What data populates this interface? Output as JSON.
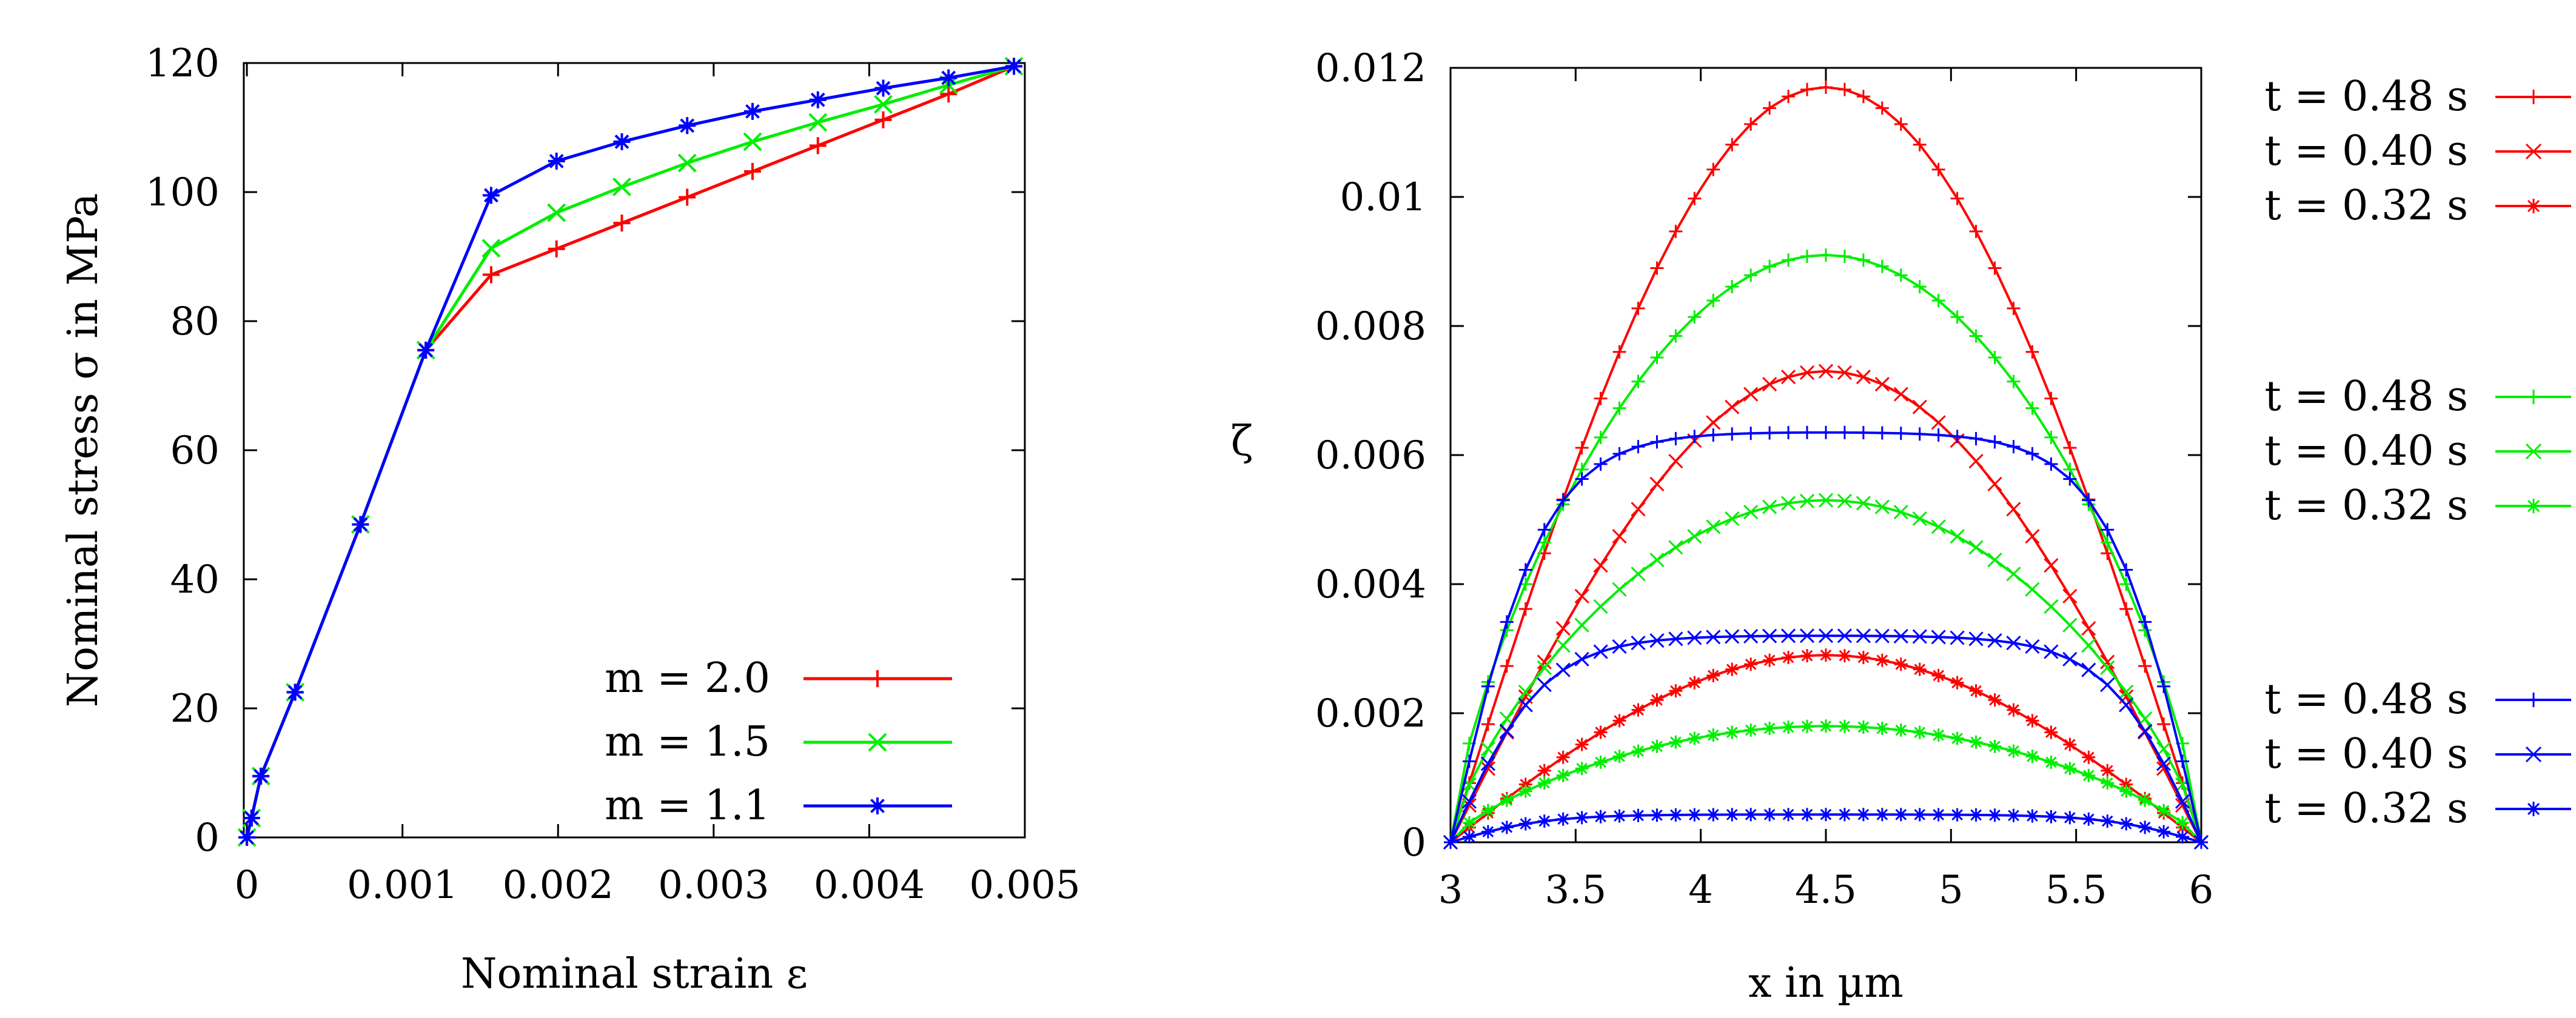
{
  "chart_data": [
    {
      "type": "line",
      "xlabel": "Nominal strain ε",
      "ylabel": "Nominal stress σ in MPa",
      "xlim": [
        -2e-05,
        0.005
      ],
      "ylim": [
        0,
        120
      ],
      "xticks": [
        0,
        0.001,
        0.002,
        0.003,
        0.004,
        0.005
      ],
      "xtick_labels": [
        "0",
        "0.001",
        "0.002",
        "0.003",
        "0.004",
        "0.005"
      ],
      "yticks": [
        0,
        20,
        40,
        60,
        80,
        100,
        120
      ],
      "ytick_labels": [
        "0",
        "20",
        "40",
        "60",
        "80",
        "100",
        "120"
      ],
      "legend_position": "bottom-right",
      "series": [
        {
          "name": "m = 2.0",
          "marker": "plus",
          "color": "#ff0000",
          "x": [
            0,
            3e-05,
            9e-05,
            0.00031,
            0.00073,
            0.00115,
            0.00157,
            0.00199,
            0.00241,
            0.00283,
            0.00325,
            0.00367,
            0.00409,
            0.00451,
            0.00493
          ],
          "y": [
            0,
            3,
            9.5,
            22.5,
            48.5,
            75.5,
            87.2,
            91.2,
            95.2,
            99.2,
            103.2,
            107.2,
            111.2,
            115.2,
            119.5
          ]
        },
        {
          "name": "m = 1.5",
          "marker": "x",
          "color": "#00ee00",
          "x": [
            0,
            3e-05,
            9e-05,
            0.00031,
            0.00073,
            0.00115,
            0.00157,
            0.00199,
            0.00241,
            0.00283,
            0.00325,
            0.00367,
            0.00409,
            0.00451,
            0.00493
          ],
          "y": [
            0,
            3,
            9.5,
            22.5,
            48.5,
            75.5,
            91.3,
            96.8,
            100.8,
            104.5,
            107.8,
            110.8,
            113.6,
            116.6,
            119.5
          ]
        },
        {
          "name": "m = 1.1",
          "marker": "star",
          "color": "#0000ff",
          "x": [
            0,
            3e-05,
            9e-05,
            0.00031,
            0.00073,
            0.00115,
            0.00157,
            0.00199,
            0.00241,
            0.00283,
            0.00325,
            0.00367,
            0.00409,
            0.00451,
            0.00493
          ],
          "y": [
            0,
            3,
            9.5,
            22.5,
            48.5,
            75.5,
            99.5,
            104.8,
            107.8,
            110.3,
            112.5,
            114.3,
            116.1,
            117.7,
            119.5
          ]
        }
      ]
    },
    {
      "type": "line",
      "xlabel": "x in µm",
      "ylabel": "ζ",
      "xlim": [
        3,
        6
      ],
      "ylim": [
        0,
        0.012
      ],
      "xticks": [
        3,
        3.5,
        4,
        4.5,
        5,
        5.5,
        6
      ],
      "xtick_labels": [
        "3",
        "3.5",
        "4",
        "4.5",
        "5",
        "5.5",
        "6"
      ],
      "yticks": [
        0,
        0.002,
        0.004,
        0.006,
        0.008,
        0.01,
        0.012
      ],
      "ytick_labels": [
        "0",
        "0.002",
        "0.004",
        "0.006",
        "0.008",
        "0.01",
        "0.012"
      ],
      "legend_position": "outside-right",
      "x_range": [
        3,
        6
      ],
      "points_per_series": 41,
      "series": [
        {
          "name": "t = 0.48 s",
          "group": "red",
          "marker": "plus",
          "color": "#ff0000",
          "peak": 0.0117,
          "shape": "sine"
        },
        {
          "name": "t = 0.40 s",
          "group": "red",
          "marker": "x",
          "color": "#ff0000",
          "peak": 0.0073,
          "shape": "sine"
        },
        {
          "name": "t = 0.32 s",
          "group": "red",
          "marker": "star",
          "color": "#ff0000",
          "peak": 0.0029,
          "shape": "sine"
        },
        {
          "name": "t = 0.48 s",
          "group": "green",
          "marker": "plus",
          "color": "#00ee00",
          "peak": 0.0091,
          "shape": "flat"
        },
        {
          "name": "t = 0.40 s",
          "group": "green",
          "marker": "x",
          "color": "#00ee00",
          "peak": 0.0053,
          "shape": "flat"
        },
        {
          "name": "t = 0.32 s",
          "group": "green",
          "marker": "star",
          "color": "#00ee00",
          "peak": 0.0018,
          "shape": "flat"
        },
        {
          "name": "t = 0.48 s",
          "group": "blue",
          "marker": "plus",
          "color": "#0000ff",
          "peak": 0.00635,
          "shape": "plateau"
        },
        {
          "name": "t = 0.40 s",
          "group": "blue",
          "marker": "x",
          "color": "#0000ff",
          "peak": 0.0032,
          "shape": "plateau"
        },
        {
          "name": "t = 0.32 s",
          "group": "blue",
          "marker": "star",
          "color": "#0000ff",
          "peak": 0.00043,
          "shape": "plateau"
        }
      ]
    }
  ]
}
